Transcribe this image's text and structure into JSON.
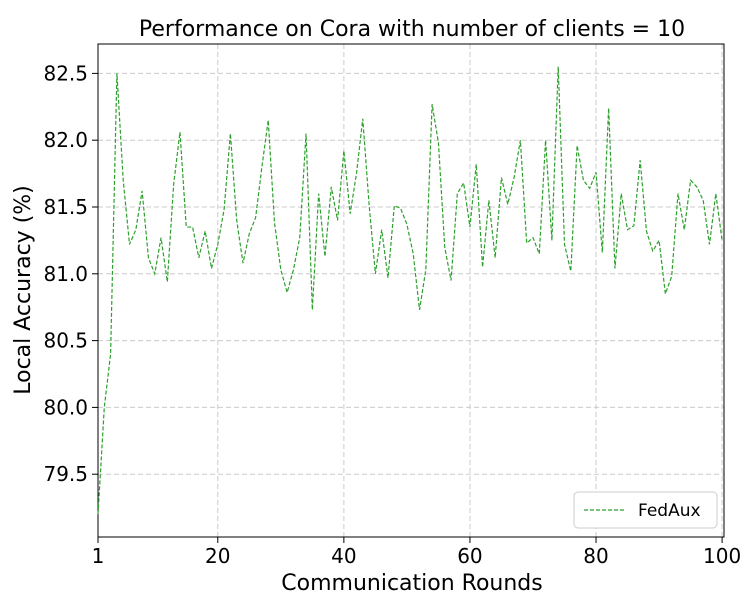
{
  "chart_data": {
    "type": "line",
    "title": "Performance on Cora with number of clients = 10",
    "xlabel": "Communication Rounds",
    "ylabel": "Local Accuracy (%)",
    "x": [
      1,
      2,
      3,
      4,
      5,
      6,
      7,
      8,
      9,
      10,
      11,
      12,
      13,
      14,
      15,
      16,
      17,
      18,
      19,
      20,
      21,
      22,
      23,
      24,
      25,
      26,
      27,
      28,
      29,
      30,
      31,
      32,
      33,
      34,
      35,
      36,
      37,
      38,
      39,
      40,
      41,
      42,
      43,
      44,
      45,
      46,
      47,
      48,
      49,
      50,
      51,
      52,
      53,
      54,
      55,
      56,
      57,
      58,
      59,
      60,
      61,
      62,
      63,
      64,
      65,
      66,
      67,
      68,
      69,
      70,
      71,
      72,
      73,
      74,
      75,
      76,
      77,
      78,
      79,
      80,
      81,
      82,
      83,
      84,
      85,
      86,
      87,
      88,
      89,
      90,
      91,
      92,
      93,
      94,
      95,
      96,
      97,
      98,
      99,
      100
    ],
    "series": [
      {
        "name": "FedAux",
        "color": "#2ca02c",
        "values": [
          79.2,
          80.0,
          80.4,
          82.5,
          81.7,
          81.22,
          81.33,
          81.62,
          81.12,
          81.0,
          81.27,
          80.94,
          81.67,
          82.06,
          81.35,
          81.35,
          81.12,
          81.32,
          81.04,
          81.22,
          81.48,
          82.05,
          81.4,
          81.08,
          81.3,
          81.42,
          81.8,
          82.15,
          81.38,
          81.03,
          80.86,
          81.03,
          81.27,
          82.05,
          80.73,
          81.6,
          81.13,
          81.65,
          81.4,
          81.92,
          81.45,
          81.75,
          82.16,
          81.52,
          81.0,
          81.33,
          80.97,
          81.51,
          81.49,
          81.37,
          81.15,
          80.73,
          81.03,
          82.27,
          81.98,
          81.2,
          80.95,
          81.6,
          81.68,
          81.35,
          81.82,
          81.05,
          81.55,
          81.12,
          81.72,
          81.52,
          81.72,
          82.0,
          81.23,
          81.27,
          81.15,
          82.0,
          81.25,
          82.55,
          81.22,
          81.02,
          81.96,
          81.7,
          81.64,
          81.76,
          81.16,
          82.24,
          81.04,
          81.6,
          81.33,
          81.36,
          81.85,
          81.32,
          81.17,
          81.25,
          80.85,
          80.98,
          81.6,
          81.33,
          81.7,
          81.65,
          81.55,
          81.22,
          81.6,
          81.25
        ]
      }
    ],
    "xlim": [
      1,
      100.3
    ],
    "ylim": [
      79.03,
      82.72
    ],
    "xticks": [
      1,
      20,
      40,
      60,
      80,
      100
    ],
    "yticks": [
      79.5,
      {
        "value": 80.0,
        "label": "80.0"
      },
      80.5,
      {
        "value": 81.0,
        "label": "81.0"
      },
      81.5,
      {
        "value": 82.0,
        "label": "82.0"
      },
      82.5
    ],
    "grid": true,
    "legend": "lower right"
  }
}
